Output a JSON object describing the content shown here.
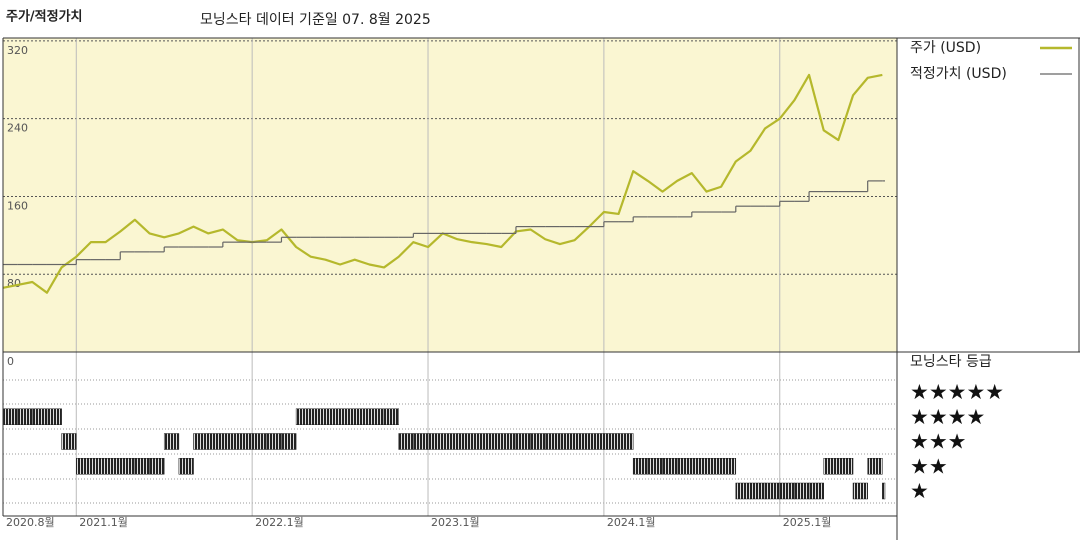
{
  "chart_data": [
    {
      "type": "line",
      "title": "주가/적정가치",
      "subtitle": "모닝스타 데이터 기준일 07. 8월 2025",
      "x": [
        "2020-08",
        "2020-09",
        "2020-10",
        "2020-11",
        "2020-12",
        "2021-01",
        "2021-02",
        "2021-03",
        "2021-04",
        "2021-05",
        "2021-06",
        "2021-07",
        "2021-08",
        "2021-09",
        "2021-10",
        "2021-11",
        "2021-12",
        "2022-01",
        "2022-02",
        "2022-03",
        "2022-04",
        "2022-05",
        "2022-06",
        "2022-07",
        "2022-08",
        "2022-09",
        "2022-10",
        "2022-11",
        "2022-12",
        "2023-01",
        "2023-02",
        "2023-03",
        "2023-04",
        "2023-05",
        "2023-06",
        "2023-07",
        "2023-08",
        "2023-09",
        "2023-10",
        "2023-11",
        "2023-12",
        "2024-01",
        "2024-02",
        "2024-03",
        "2024-04",
        "2024-05",
        "2024-06",
        "2024-07",
        "2024-08",
        "2024-09",
        "2024-10",
        "2024-11",
        "2024-12",
        "2025-01",
        "2025-02",
        "2025-03",
        "2025-04",
        "2025-05",
        "2025-06",
        "2025-07",
        "2025-08"
      ],
      "xlim": [
        "2020-08",
        "2025-09"
      ],
      "xticks": [
        {
          "value": "2020-08",
          "label": "2020.8월"
        },
        {
          "value": "2021-01",
          "label": "2021.1월"
        },
        {
          "value": "2022-01",
          "label": "2022.1월"
        },
        {
          "value": "2023-01",
          "label": "2023.1월"
        },
        {
          "value": "2024-01",
          "label": "2024.1월"
        },
        {
          "value": "2025-01",
          "label": "2025.1월"
        }
      ],
      "ylim": [
        0,
        323
      ],
      "yticks": [
        0,
        80,
        160,
        240,
        320
      ],
      "grid": true,
      "series": [
        {
          "name": "주가 (USD)",
          "color": "#b5b82c",
          "values": [
            66,
            69,
            72,
            61,
            87,
            98,
            113,
            113,
            124,
            136,
            122,
            118,
            122,
            129,
            122,
            126,
            115,
            113,
            115,
            126,
            108,
            98,
            95,
            90,
            95,
            90,
            87,
            98,
            113,
            108,
            122,
            116,
            113,
            111,
            108,
            124,
            126,
            116,
            111,
            115,
            129,
            144,
            142,
            186,
            176,
            165,
            176,
            184,
            165,
            170,
            196,
            207,
            230,
            240,
            259,
            285,
            228,
            218,
            264,
            282,
            285
          ]
        },
        {
          "name": "적정가치 (USD)",
          "color": "#666666",
          "step": true,
          "values": [
            90,
            90,
            90,
            90,
            90,
            95,
            95,
            95,
            103,
            103,
            103,
            108,
            108,
            108,
            108,
            113,
            113,
            113,
            113,
            118,
            118,
            118,
            118,
            118,
            118,
            118,
            118,
            118,
            122,
            122,
            122,
            122,
            122,
            122,
            122,
            129,
            129,
            129,
            129,
            129,
            129,
            134,
            134,
            139,
            139,
            139,
            139,
            144,
            144,
            144,
            150,
            150,
            150,
            155,
            155,
            165,
            165,
            165,
            165,
            176,
            176
          ]
        }
      ]
    },
    {
      "type": "rating",
      "title": "모닝스타 등급",
      "color": "#222222",
      "x": [
        "2020-08",
        "2020-09",
        "2020-10",
        "2020-11",
        "2020-12",
        "2021-01",
        "2021-02",
        "2021-03",
        "2021-04",
        "2021-05",
        "2021-06",
        "2021-07",
        "2021-08",
        "2021-09",
        "2021-10",
        "2021-11",
        "2021-12",
        "2022-01",
        "2022-02",
        "2022-03",
        "2022-04",
        "2022-05",
        "2022-06",
        "2022-07",
        "2022-08",
        "2022-09",
        "2022-10",
        "2022-11",
        "2022-12",
        "2023-01",
        "2023-02",
        "2023-03",
        "2023-04",
        "2023-05",
        "2023-06",
        "2023-07",
        "2023-08",
        "2023-09",
        "2023-10",
        "2023-11",
        "2023-12",
        "2024-01",
        "2024-02",
        "2024-03",
        "2024-04",
        "2024-05",
        "2024-06",
        "2024-07",
        "2024-08",
        "2024-09",
        "2024-10",
        "2024-11",
        "2024-12",
        "2025-01",
        "2025-02",
        "2025-03",
        "2025-04",
        "2025-05",
        "2025-06",
        "2025-07",
        "2025-08"
      ],
      "values": [
        4,
        4,
        4,
        4,
        3,
        2,
        2,
        2,
        2,
        2,
        2,
        3,
        2,
        3,
        3,
        3,
        3,
        3,
        3,
        3,
        4,
        4,
        4,
        4,
        4,
        4,
        4,
        3,
        3,
        3,
        3,
        3,
        3,
        3,
        3,
        3,
        3,
        3,
        3,
        3,
        3,
        3,
        3,
        2,
        2,
        2,
        2,
        2,
        2,
        2,
        1,
        1,
        1,
        1,
        1,
        1,
        2,
        2,
        1,
        2,
        1
      ],
      "levels": [
        {
          "value": 5,
          "label": "★★★★★"
        },
        {
          "value": 4,
          "label": "★★★★"
        },
        {
          "value": 3,
          "label": "★★★"
        },
        {
          "value": 2,
          "label": "★★"
        },
        {
          "value": 1,
          "label": "★"
        }
      ]
    }
  ]
}
